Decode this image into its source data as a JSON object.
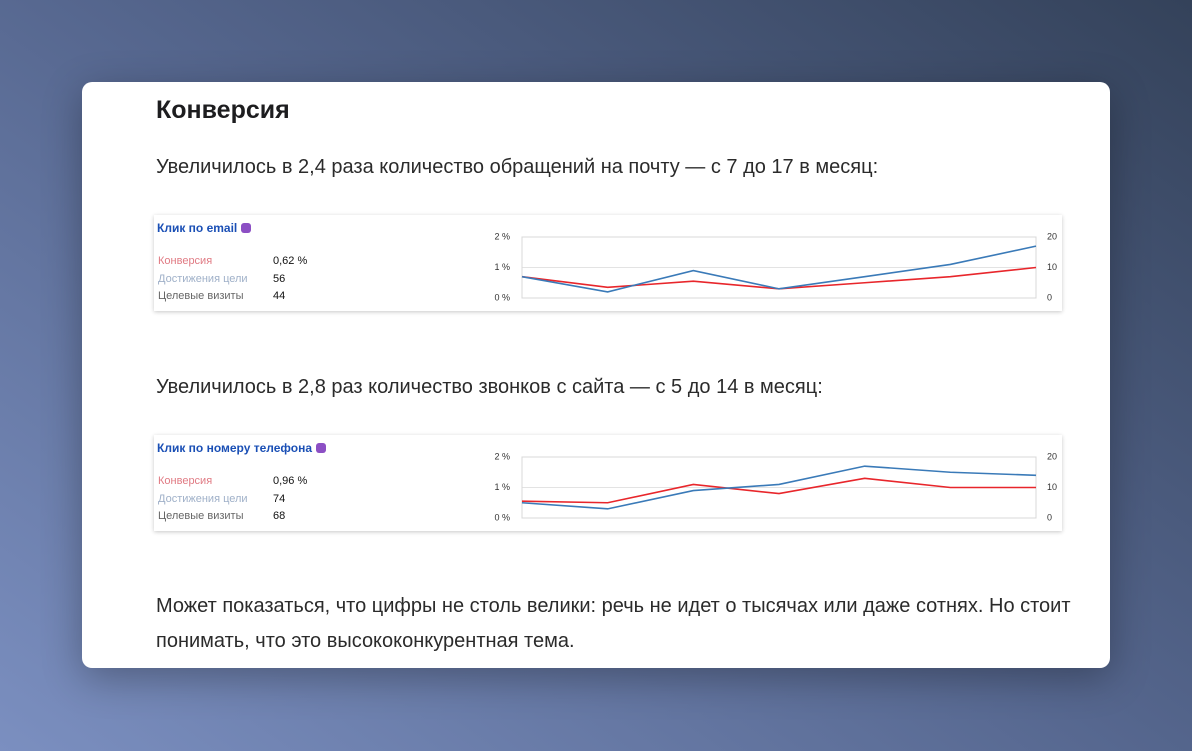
{
  "heading": "Конверсия",
  "paragraphs": [
    "Увеличилось в 2,4 раза количество обращений на почту — с 7 до 17 в месяц:",
    "Увеличилось в 2,8 раз количество звонков с сайта — с 5 до 14 в месяц:",
    "Может показаться, что цифры не столь велики: речь не идет о тысячах или даже сотнях. Но стоит понимать, что это высококонкурентная тема."
  ],
  "chart_data": [
    {
      "type": "line",
      "title": "Клик по email",
      "metrics": [
        {
          "label": "Конверсия",
          "value": "0,62 %"
        },
        {
          "label": "Достижения цели",
          "value": "56"
        },
        {
          "label": "Целевые визиты",
          "value": "44"
        }
      ],
      "categories": [
        null,
        null,
        null,
        null,
        null,
        null,
        null
      ],
      "series": [
        {
          "color": "#e8262b",
          "values": [
            0.7,
            0.35,
            0.55,
            0.3,
            0.5,
            0.7,
            1.0
          ]
        },
        {
          "color": "#3a7ab8",
          "axis": "y2",
          "values": [
            7,
            2,
            9,
            3,
            7,
            11,
            17
          ]
        }
      ],
      "ylim": [
        0,
        2
      ],
      "yticks": [
        {
          "value": 0,
          "label": "0 %"
        },
        {
          "value": 1,
          "label": "1 %"
        },
        {
          "value": 2,
          "label": "2 %"
        }
      ],
      "y2lim": [
        0,
        20
      ],
      "y2ticks": [
        0,
        10,
        20
      ],
      "grid": true
    },
    {
      "type": "line",
      "title": "Клик по номеру телефона",
      "metrics": [
        {
          "label": "Конверсия",
          "value": "0,96 %"
        },
        {
          "label": "Достижения цели",
          "value": "74"
        },
        {
          "label": "Целевые визиты",
          "value": "68"
        }
      ],
      "categories": [
        null,
        null,
        null,
        null,
        null,
        null,
        null
      ],
      "series": [
        {
          "color": "#e8262b",
          "values": [
            0.55,
            0.5,
            1.1,
            0.8,
            1.3,
            1.0,
            1.0
          ]
        },
        {
          "color": "#3a7ab8",
          "axis": "y2",
          "values": [
            5,
            3,
            9,
            11,
            17,
            15,
            14
          ]
        }
      ],
      "ylim": [
        0,
        2
      ],
      "yticks": [
        {
          "value": 0,
          "label": "0 %"
        },
        {
          "value": 1,
          "label": "1 %"
        },
        {
          "value": 2,
          "label": "2 %"
        }
      ],
      "y2lim": [
        0,
        20
      ],
      "y2ticks": [
        0,
        10,
        20
      ],
      "grid": true
    }
  ]
}
